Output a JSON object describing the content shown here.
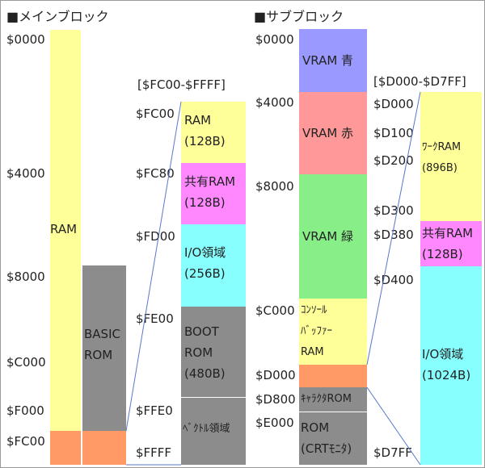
{
  "main": {
    "title": "■メインブロック",
    "addr": {
      "a0000": "$0000",
      "a4000": "$4000",
      "a8000": "$8000",
      "ac000": "$C000",
      "af000": "$F000",
      "afc00": "$FC00"
    },
    "ram_label": "RAM",
    "basic_label": "BASIC\nROM",
    "zoom_title": "[$FC00-$FFFF]",
    "zoom_addr": {
      "fc00": "$FC00",
      "fc80": "$FC80",
      "fd00": "$FD00",
      "fe00": "$FE00",
      "ffe0": "$FFE0",
      "ffff": "$FFFF"
    },
    "zoom_blocks": {
      "ram": "RAM\n(128B)",
      "shared": "共有RAM\n(128B)",
      "io": "I/O領域\n(256B)",
      "boot": "BOOT\nROM\n(480B)",
      "vector": "ﾍﾞｸﾄﾙ領域"
    }
  },
  "sub": {
    "title": "■サブブロック",
    "addr": {
      "a0000": "$0000",
      "a4000": "$4000",
      "a8000": "$8000",
      "ac000": "$C000",
      "ad000": "$D000",
      "ad800": "$D800",
      "ae000": "$E000"
    },
    "blocks": {
      "vram_blue": "VRAM 青",
      "vram_red": "VRAM 赤",
      "vram_green": "VRAM 緑",
      "console": "ｺﾝｿｰﾙ\nﾊﾞｯﾌｧｰ\nRAM",
      "char_rom": "ｷｬﾗｸﾀROM",
      "crt_rom": "ROM\n(CRTﾓﾆﾀ)"
    },
    "zoom_title": "[$D000-$D7FF]",
    "zoom_addr": {
      "d000": "$D000",
      "d100": "$D100",
      "d200": "$D200",
      "d300": "$D300",
      "d380": "$D380",
      "d400": "$D400",
      "d7ff": "$D7FF"
    },
    "zoom_blocks": {
      "work": "ﾜｰｸRAM\n(896B)",
      "shared": "共有RAM\n(128B)",
      "io": "I/O領域\n(1024B)"
    }
  },
  "colors": {
    "yellow": "#ffff99",
    "gray": "#8c8c8c",
    "orange": "#ff9966",
    "magenta": "#ff88ff",
    "cyan": "#88ffff",
    "blue": "#9999ff",
    "red": "#ff9999",
    "green": "#88ee88",
    "line": "#5577cc"
  }
}
